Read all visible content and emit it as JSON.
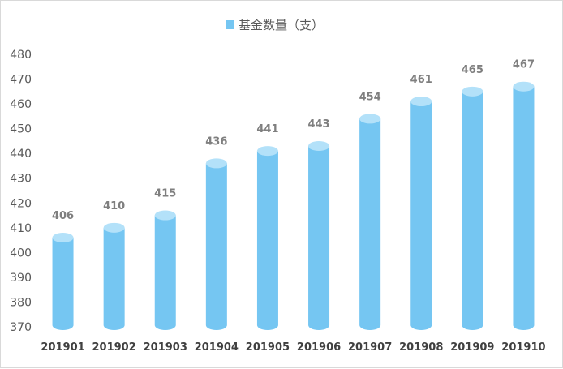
{
  "chart_data": {
    "type": "bar",
    "title": "",
    "xlabel": "",
    "ylabel": "",
    "categories": [
      "201901",
      "201902",
      "201903",
      "201904",
      "201905",
      "201906",
      "201907",
      "201908",
      "201909",
      "201910"
    ],
    "series": [
      {
        "name": "基金数量（支）",
        "values": [
          406,
          410,
          415,
          436,
          441,
          443,
          454,
          461,
          465,
          467
        ],
        "color": "#75c6f2"
      }
    ],
    "ylim": [
      370,
      480
    ],
    "yticks": [
      370,
      380,
      390,
      400,
      410,
      420,
      430,
      440,
      450,
      460,
      470,
      480
    ],
    "grid": false,
    "legend_position": "top-center",
    "bar_style": "cylinder",
    "data_labels": true
  },
  "colors": {
    "bar_body": "#75c6f2",
    "bar_top": "#b3e1f9",
    "data_label": "#7f7f7f",
    "axis_text": "#595959"
  }
}
